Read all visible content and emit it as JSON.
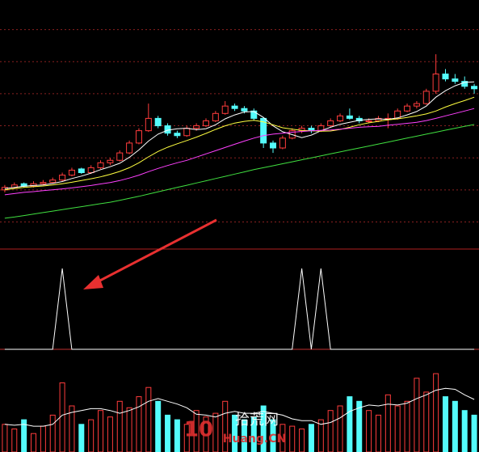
{
  "chart_data": [
    {
      "type": "candlestick",
      "up_color": "#ff3c3c",
      "down_color": "#54fcfc",
      "ylim": [
        0,
        100
      ],
      "yticks": [
        10,
        23,
        36,
        49,
        62,
        75,
        88
      ],
      "grid": true,
      "ohlc": [
        [
          23,
          25,
          22,
          24
        ],
        [
          24,
          26,
          23.5,
          25
        ],
        [
          25.5,
          26,
          24,
          24.5
        ],
        [
          24.5,
          26.5,
          24,
          25.5
        ],
        [
          25.5,
          27,
          25,
          26
        ],
        [
          26,
          28,
          25.5,
          27
        ],
        [
          27,
          30,
          26.5,
          29
        ],
        [
          29,
          32,
          28.5,
          31
        ],
        [
          31.5,
          32,
          29.5,
          30
        ],
        [
          30,
          33,
          29.5,
          32
        ],
        [
          32,
          35,
          31.5,
          34
        ],
        [
          34,
          36,
          33,
          35
        ],
        [
          35,
          39,
          34.5,
          38
        ],
        [
          38,
          43,
          37.5,
          42
        ],
        [
          42,
          48,
          41.5,
          47
        ],
        [
          47,
          58,
          46.5,
          52
        ],
        [
          52,
          53,
          48,
          49
        ],
        [
          49,
          50,
          45,
          46
        ],
        [
          46,
          47,
          44,
          45
        ],
        [
          45,
          49,
          44.5,
          48
        ],
        [
          48,
          50,
          47,
          49
        ],
        [
          49,
          52,
          48.5,
          51
        ],
        [
          51,
          55,
          50.5,
          54
        ],
        [
          54,
          59,
          53.5,
          57
        ],
        [
          57,
          58,
          55,
          56
        ],
        [
          56,
          57,
          54,
          55
        ],
        [
          55,
          56,
          51,
          52
        ],
        [
          52,
          52.5,
          40,
          42
        ],
        [
          42,
          43,
          38,
          40
        ],
        [
          40,
          45,
          39.5,
          44
        ],
        [
          44,
          48,
          43.5,
          47
        ],
        [
          47,
          49,
          46,
          48
        ],
        [
          48,
          49,
          46,
          47
        ],
        [
          47,
          50,
          46.5,
          49
        ],
        [
          49,
          52,
          48.5,
          51
        ],
        [
          51,
          54,
          50.5,
          53
        ],
        [
          53,
          56,
          51.5,
          52
        ],
        [
          52,
          53,
          50,
          51
        ],
        [
          51,
          52,
          50,
          51
        ],
        [
          51,
          53,
          50.5,
          52
        ],
        [
          52,
          54,
          48,
          52
        ],
        [
          52,
          56,
          51.5,
          55
        ],
        [
          55,
          58,
          54.5,
          57
        ],
        [
          57,
          59,
          56,
          58
        ],
        [
          58,
          64,
          57.5,
          63
        ],
        [
          63,
          78,
          62,
          70
        ],
        [
          70,
          72,
          67,
          68
        ],
        [
          68,
          70,
          66,
          67
        ],
        [
          67,
          69,
          64,
          65
        ],
        [
          65,
          66,
          62,
          64
        ]
      ],
      "series": [
        {
          "color": "#ffffff",
          "values": [
            23.5,
            24,
            24.5,
            24.8,
            25,
            25.6,
            26.4,
            27.6,
            28.6,
            29.8,
            31.2,
            32.4,
            33.8,
            36.2,
            39.2,
            42.8,
            45.6,
            47.2,
            47.8,
            48,
            47.4,
            47.8,
            49.4,
            51.8,
            53.4,
            54.6,
            54.8,
            52.4,
            49,
            46.6,
            45.4,
            44.2,
            45.2,
            47,
            48.4,
            49.6,
            50.4,
            51.2,
            51.6,
            51.8,
            51.6,
            52.2,
            53.4,
            54.8,
            57,
            60.6,
            63.2,
            65.2,
            66.6,
            66.8
          ]
        },
        {
          "color": "#ffff40",
          "values": [
            23,
            23.5,
            24,
            24.3,
            24.6,
            25,
            25.5,
            26.1,
            26.8,
            27.5,
            28.3,
            29.3,
            30.5,
            32,
            34,
            36.4,
            38.6,
            40.3,
            41.7,
            43,
            44.4,
            45.9,
            47.5,
            49,
            50.1,
            50.8,
            51.2,
            50.6,
            49.4,
            48.2,
            47.6,
            47.1,
            47,
            46.8,
            46.9,
            47.5,
            48.4,
            49.4,
            50.2,
            50.8,
            51.4,
            51.8,
            52.4,
            53,
            53.8,
            55,
            56.6,
            58,
            59.2,
            60.6
          ]
        },
        {
          "color": "#ff40ff",
          "values": [
            21,
            21.5,
            22,
            22.3,
            22.7,
            23,
            23.4,
            23.8,
            24.3,
            24.8,
            25.4,
            26,
            26.8,
            27.8,
            29,
            30.4,
            31.7,
            32.9,
            34,
            35,
            36.3,
            37.6,
            38.9,
            40.2,
            41.5,
            42.8,
            44,
            45,
            45.6,
            46,
            46.4,
            46.7,
            47,
            47.1,
            47.3,
            47.6,
            48,
            48.4,
            48.6,
            48.8,
            49.2,
            49.6,
            50,
            50.4,
            51.1,
            52,
            53,
            54,
            55,
            56
          ]
        },
        {
          "color": "#40e040",
          "values": [
            11.5,
            12,
            12.6,
            13.2,
            13.8,
            14.4,
            15,
            15.6,
            16.2,
            16.8,
            17.4,
            18,
            18.8,
            19.6,
            20.4,
            21.3,
            22.2,
            23.1,
            24,
            24.9,
            25.8,
            26.7,
            27.6,
            28.5,
            29.4,
            30.3,
            31.2,
            32,
            32.8,
            33.6,
            34.4,
            35.2,
            36,
            36.8,
            37.6,
            38.4,
            39.2,
            40,
            40.8,
            41.6,
            42.4,
            43.2,
            44,
            44.8,
            45.6,
            46.4,
            47.2,
            48,
            48.8,
            49.5
          ]
        }
      ]
    },
    {
      "type": "line",
      "ylim": [
        0,
        1.2
      ],
      "series": [
        {
          "color": "#ffffff",
          "values": [
            0,
            0,
            0,
            0,
            0,
            0,
            1,
            0,
            0,
            0,
            0,
            0,
            0,
            0,
            0,
            0,
            0,
            0,
            0,
            0,
            0,
            0,
            0,
            0,
            0,
            0,
            0,
            0,
            0,
            0,
            0,
            1,
            0,
            1,
            0,
            0,
            0,
            0,
            0,
            0,
            0,
            0,
            0,
            0,
            0,
            0,
            0,
            0,
            0,
            0
          ]
        }
      ]
    },
    {
      "type": "bar",
      "ylim": [
        0,
        100
      ],
      "values": [
        30,
        25,
        35,
        20,
        28,
        40,
        75,
        50,
        30,
        35,
        45,
        38,
        55,
        48,
        60,
        70,
        55,
        40,
        35,
        30,
        45,
        38,
        42,
        55,
        40,
        35,
        38,
        50,
        35,
        30,
        28,
        25,
        30,
        35,
        45,
        50,
        60,
        55,
        45,
        40,
        62,
        50,
        55,
        80,
        65,
        85,
        60,
        55,
        45,
        40
      ],
      "series": [
        {
          "color": "#ffffff",
          "values": [
            30,
            29,
            30,
            28,
            28,
            30,
            40,
            43,
            45,
            47,
            47,
            45,
            42,
            45,
            49,
            55,
            58,
            55,
            52,
            48,
            41,
            40,
            38,
            42,
            44,
            42,
            42,
            44,
            42,
            40,
            36,
            34,
            34,
            30,
            32,
            37,
            44,
            48,
            51,
            50,
            52,
            51,
            53,
            58,
            62,
            67,
            69,
            68,
            62,
            57
          ]
        }
      ]
    }
  ],
  "watermark": {
    "logo": "10",
    "name": "拾荒网",
    "site": "Huang.CN"
  }
}
